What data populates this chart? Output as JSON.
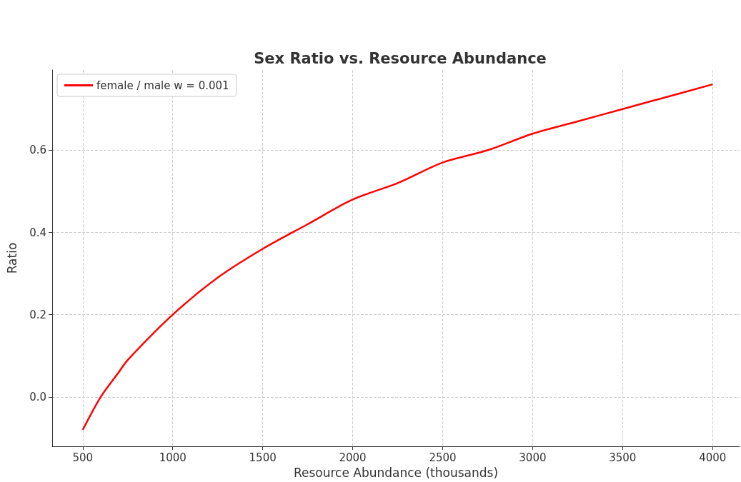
{
  "chart_data": {
    "type": "line",
    "title": "Sex Ratio vs. Resource Abundance",
    "xlabel": "Resource Abundance (thousands)",
    "ylabel": "Ratio",
    "series": [
      {
        "name": "female / male w = 0.001",
        "color": "#ff0000",
        "x": [
          500,
          600,
          700,
          750,
          1000,
          1250,
          1500,
          1750,
          2000,
          2250,
          2500,
          2750,
          3000,
          3250,
          3500,
          3750,
          4000
        ],
        "values": [
          -0.08,
          0.0,
          0.06,
          0.09,
          0.2,
          0.29,
          0.36,
          0.42,
          0.48,
          0.52,
          0.57,
          0.6,
          0.64,
          0.67,
          0.7,
          0.73,
          0.76
        ]
      }
    ],
    "xlim": [
      330,
      4150
    ],
    "xticks": [
      500,
      1000,
      1500,
      2000,
      2500,
      3000,
      3500,
      4000
    ],
    "ylim": [
      -0.12,
      0.795
    ],
    "yticks": [
      {
        "value": 0,
        "label": "0.0"
      },
      0.2,
      0.4,
      0.6
    ],
    "grid": true,
    "legend": "top left",
    "marker": "none",
    "line_style": "solid"
  }
}
